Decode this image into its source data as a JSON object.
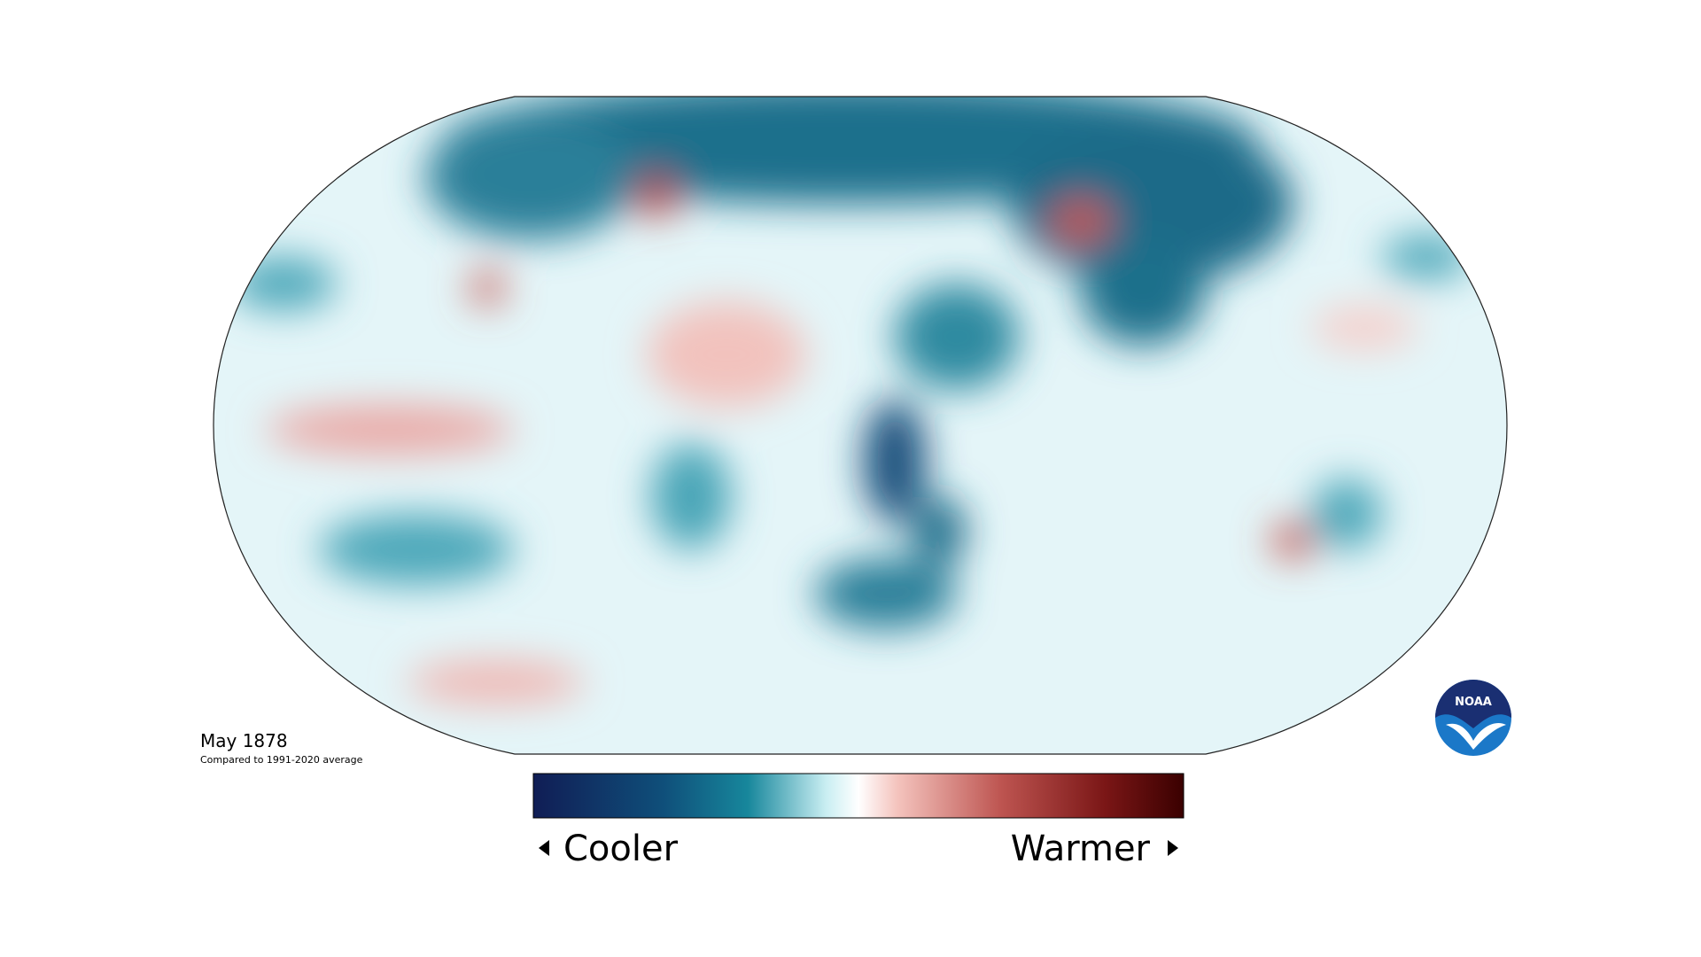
{
  "title": "May 1878",
  "subtitle": "Compared to 1991-2020 average",
  "legend": {
    "low": "Cooler",
    "high": "Warmer"
  },
  "logo": "NOAA"
}
